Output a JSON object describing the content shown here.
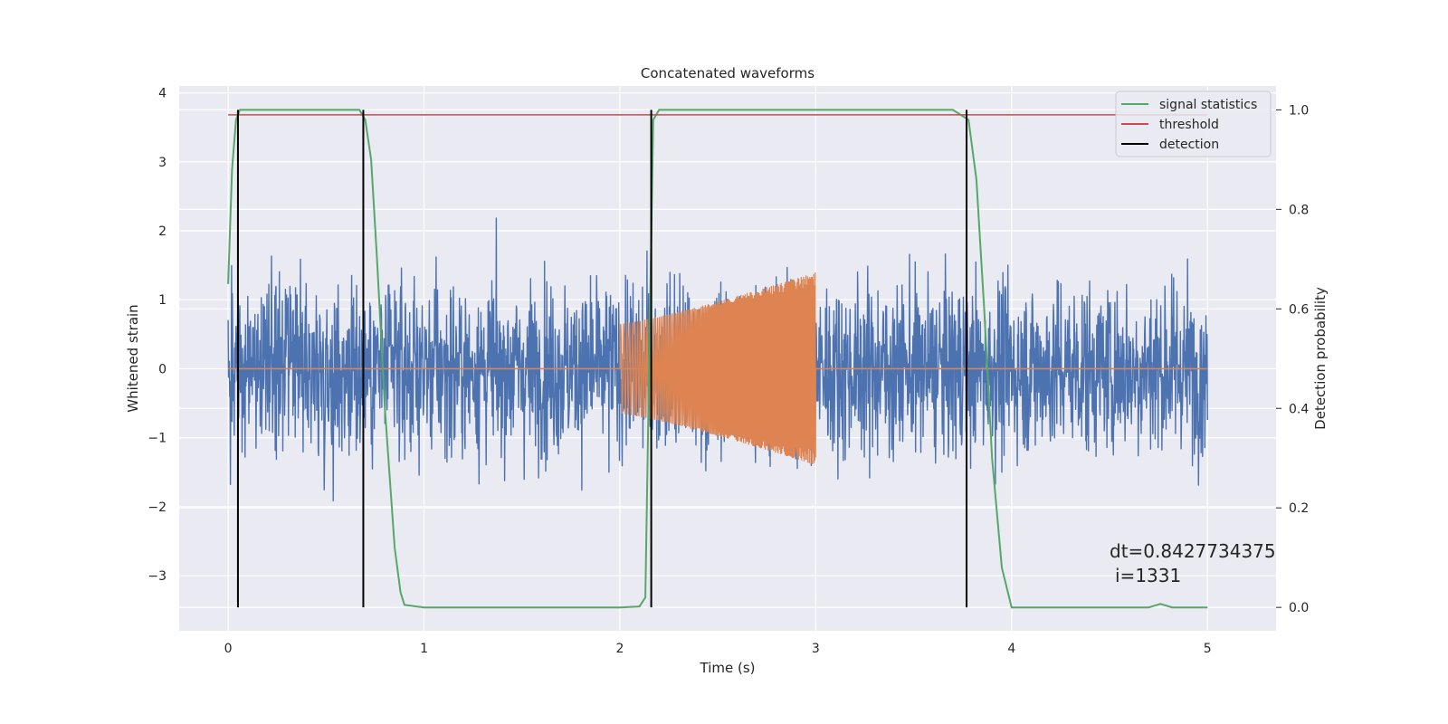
{
  "chart_data": {
    "type": "line",
    "title": "Concatenated waveforms",
    "xlabel": "Time (s)",
    "ylabel": "Whitened strain",
    "ylabel_right": "Detection probability",
    "xlim": [
      -0.25,
      5.35
    ],
    "ylim": [
      -3.8,
      4.1
    ],
    "ylim_right": [
      -0.047,
      1.048
    ],
    "x_ticks": [
      0,
      1,
      2,
      3,
      4,
      5
    ],
    "y_ticks": [
      -3,
      -2,
      -1,
      0,
      1,
      2,
      3,
      4
    ],
    "y_ticks_right": [
      0.0,
      0.2,
      0.4,
      0.6,
      0.8,
      1.0
    ],
    "grid": true,
    "legend_position": "upper right",
    "colors": {
      "strain": "#4c72b0",
      "injection": "#dd8452",
      "signal_statistics": "#55a868",
      "threshold": "#c44e52",
      "detection": "#000000",
      "background": "#eaeaf2",
      "grid": "#ffffff"
    },
    "series": [
      {
        "name": "",
        "axis": "left",
        "kind": "noise",
        "x_range": [
          0,
          5
        ],
        "envelope": [
          [
            0,
            3.1
          ],
          [
            0.1,
            3.4
          ],
          [
            0.5,
            2.9
          ],
          [
            1,
            2.8
          ],
          [
            2,
            3.0
          ],
          [
            2.5,
            3.4
          ],
          [
            3,
            3.0
          ],
          [
            4,
            3.1
          ],
          [
            5,
            3.0
          ]
        ],
        "core_amplitude": 0.9
      },
      {
        "name": "",
        "axis": "left",
        "kind": "chirp",
        "x_range": [
          2,
          3
        ],
        "amplitude_start": 0.65,
        "amplitude_end": 1.4,
        "zero_line": [
          0,
          5
        ]
      },
      {
        "name": "signal statistics",
        "axis": "right",
        "x": [
          0.0,
          0.02,
          0.04,
          0.06,
          0.1,
          0.2,
          0.5,
          0.67,
          0.7,
          0.73,
          0.76,
          0.8,
          0.85,
          0.88,
          0.9,
          1.0,
          1.5,
          2.0,
          2.1,
          2.13,
          2.15,
          2.17,
          2.2,
          2.3,
          3.0,
          3.7,
          3.78,
          3.82,
          3.86,
          3.9,
          3.95,
          4.0,
          4.5,
          4.7,
          4.76,
          4.82,
          5.0
        ],
        "y": [
          0.65,
          0.88,
          0.98,
          1.0,
          1.0,
          1.0,
          1.0,
          1.0,
          0.98,
          0.9,
          0.7,
          0.4,
          0.12,
          0.03,
          0.005,
          0.0,
          0.0,
          0.0,
          0.002,
          0.02,
          0.5,
          0.98,
          1.0,
          1.0,
          1.0,
          1.0,
          0.98,
          0.86,
          0.6,
          0.3,
          0.08,
          0.0,
          0.0,
          0.0,
          0.007,
          0.0,
          0.0
        ]
      },
      {
        "name": "threshold",
        "axis": "right",
        "x": [
          0,
          5
        ],
        "y": [
          0.99,
          0.99
        ]
      },
      {
        "name": "detection",
        "axis": "right",
        "kind": "vertical_lines",
        "x": [
          0.05,
          0.69,
          2.16,
          3.77
        ],
        "y_range": [
          0.0,
          1.0
        ]
      }
    ],
    "legend": [
      "signal statistics",
      "threshold",
      "detection"
    ],
    "annotation": {
      "line1": "dt=0.8427734375",
      "line2": "i=1331"
    }
  }
}
